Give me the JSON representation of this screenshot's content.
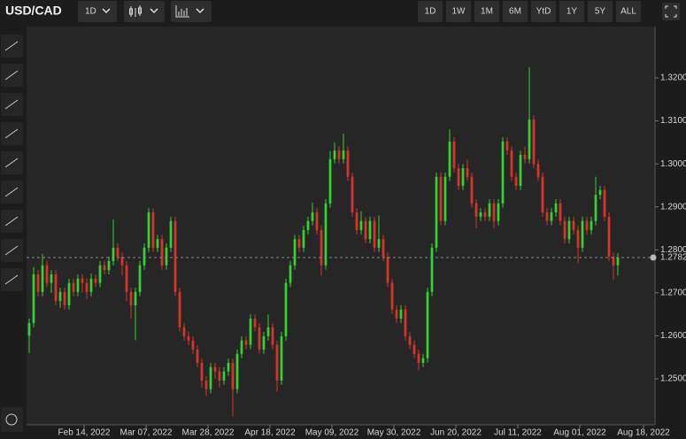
{
  "toolbar": {
    "symbol": "USD/CAD",
    "interval": "1D",
    "ranges": [
      "1D",
      "1W",
      "1M",
      "6M",
      "YtD",
      "1Y",
      "5Y",
      "ALL"
    ]
  },
  "chart_data": {
    "type": "candlestick",
    "up_color": "#33d133",
    "down_color": "#d9342b",
    "last_price": 1.2782,
    "xlim": [
      -0.6,
      141.4
    ],
    "xticks": [
      {
        "value": 12.4,
        "label": "Feb 14, 2022"
      },
      {
        "value": 26.4,
        "label": "Mar 07, 2022"
      },
      {
        "value": 40.4,
        "label": "Mar 28, 2022"
      },
      {
        "value": 54.4,
        "label": "Apr 18, 2022"
      },
      {
        "value": 68.4,
        "label": "May 09, 2022"
      },
      {
        "value": 82.4,
        "label": "May 30, 2022"
      },
      {
        "value": 96.4,
        "label": "Jun 20, 2022"
      },
      {
        "value": 110.4,
        "label": "Jul 11, 2022"
      },
      {
        "value": 124.4,
        "label": "Aug 01, 2022"
      },
      {
        "value": 138.8,
        "label": "Aug 18, 2022"
      }
    ],
    "ylim": [
      1.2397,
      1.3303
    ],
    "yticks": [
      {
        "value": 1.25,
        "label": "1.2500"
      },
      {
        "value": 1.26,
        "label": "1.2600"
      },
      {
        "value": 1.27,
        "label": "1.2700"
      },
      {
        "value": 1.28,
        "label": "1.2800"
      },
      {
        "value": 1.29,
        "label": "1.2900"
      },
      {
        "value": 1.3,
        "label": "1.3000"
      },
      {
        "value": 1.31,
        "label": "1.3100"
      },
      {
        "value": 1.32,
        "label": "1.3200"
      }
    ],
    "candles": [
      [
        1.26,
        1.264,
        1.256,
        1.263
      ],
      [
        1.263,
        1.276,
        1.262,
        1.2743
      ],
      [
        1.2743,
        1.2753,
        1.2692,
        1.2702
      ],
      [
        1.2702,
        1.279,
        1.2692,
        1.2764
      ],
      [
        1.2764,
        1.2774,
        1.2713,
        1.2723
      ],
      [
        1.2723,
        1.2753,
        1.27,
        1.2743
      ],
      [
        1.2743,
        1.2753,
        1.2671,
        1.2681
      ],
      [
        1.2681,
        1.2712,
        1.2665,
        1.2702
      ],
      [
        1.2702,
        1.2712,
        1.2661,
        1.2671
      ],
      [
        1.2671,
        1.2733,
        1.2661,
        1.2723
      ],
      [
        1.2723,
        1.2733,
        1.2692,
        1.2702
      ],
      [
        1.2702,
        1.2743,
        1.2692,
        1.2733
      ],
      [
        1.2733,
        1.2743,
        1.27,
        1.2723
      ],
      [
        1.2723,
        1.2733,
        1.2685,
        1.2702
      ],
      [
        1.2702,
        1.2745,
        1.2692,
        1.2733
      ],
      [
        1.2733,
        1.2743,
        1.2713,
        1.2723
      ],
      [
        1.2723,
        1.2774,
        1.2713,
        1.2764
      ],
      [
        1.2764,
        1.2774,
        1.2743,
        1.2753
      ],
      [
        1.2753,
        1.2784,
        1.2743,
        1.2774
      ],
      [
        1.2774,
        1.287,
        1.2764,
        1.2805
      ],
      [
        1.2805,
        1.2815,
        1.2774,
        1.2784
      ],
      [
        1.2784,
        1.2794,
        1.274,
        1.2764
      ],
      [
        1.2764,
        1.2774,
        1.268,
        1.2702
      ],
      [
        1.2702,
        1.2712,
        1.264,
        1.2671
      ],
      [
        1.2671,
        1.2712,
        1.259,
        1.2702
      ],
      [
        1.2702,
        1.2774,
        1.2692,
        1.2764
      ],
      [
        1.2764,
        1.2815,
        1.2754,
        1.2805
      ],
      [
        1.2805,
        1.2897,
        1.2795,
        1.2887
      ],
      [
        1.2887,
        1.2897,
        1.2795,
        1.2805
      ],
      [
        1.2805,
        1.2835,
        1.2795,
        1.2825
      ],
      [
        1.2825,
        1.2835,
        1.2754,
        1.2764
      ],
      [
        1.2764,
        1.2815,
        1.2754,
        1.2805
      ],
      [
        1.2805,
        1.2877,
        1.2795,
        1.2867
      ],
      [
        1.2867,
        1.2877,
        1.2692,
        1.2702
      ],
      [
        1.2702,
        1.2712,
        1.261,
        1.262
      ],
      [
        1.262,
        1.263,
        1.2589,
        1.2599
      ],
      [
        1.2599,
        1.2609,
        1.2579,
        1.2589
      ],
      [
        1.2589,
        1.2599,
        1.2558,
        1.2568
      ],
      [
        1.2568,
        1.2578,
        1.2527,
        1.2537
      ],
      [
        1.2537,
        1.2547,
        1.248,
        1.2496
      ],
      [
        1.2496,
        1.2506,
        1.246,
        1.2476
      ],
      [
        1.2476,
        1.2537,
        1.2466,
        1.2527
      ],
      [
        1.2527,
        1.2537,
        1.25,
        1.2517
      ],
      [
        1.2517,
        1.2527,
        1.248,
        1.2496
      ],
      [
        1.2496,
        1.2527,
        1.2486,
        1.2517
      ],
      [
        1.2517,
        1.2547,
        1.2507,
        1.2537
      ],
      [
        1.2537,
        1.2547,
        1.2412,
        1.2476
      ],
      [
        1.2476,
        1.2568,
        1.2466,
        1.2558
      ],
      [
        1.2558,
        1.2599,
        1.2548,
        1.2589
      ],
      [
        1.2589,
        1.2599,
        1.2569,
        1.2579
      ],
      [
        1.2579,
        1.265,
        1.2569,
        1.264
      ],
      [
        1.264,
        1.265,
        1.261,
        1.262
      ],
      [
        1.262,
        1.263,
        1.2558,
        1.2568
      ],
      [
        1.2568,
        1.2609,
        1.2558,
        1.2599
      ],
      [
        1.2599,
        1.265,
        1.2589,
        1.262
      ],
      [
        1.262,
        1.263,
        1.2569,
        1.2579
      ],
      [
        1.2579,
        1.2589,
        1.247,
        1.2496
      ],
      [
        1.2496,
        1.2609,
        1.2486,
        1.2599
      ],
      [
        1.2599,
        1.2733,
        1.2589,
        1.2723
      ],
      [
        1.2723,
        1.2774,
        1.2713,
        1.2764
      ],
      [
        1.2764,
        1.2835,
        1.2754,
        1.2825
      ],
      [
        1.2825,
        1.2835,
        1.2795,
        1.2805
      ],
      [
        1.2805,
        1.2856,
        1.2795,
        1.2846
      ],
      [
        1.2846,
        1.2877,
        1.2836,
        1.2867
      ],
      [
        1.2867,
        1.291,
        1.2857,
        1.2887
      ],
      [
        1.2887,
        1.2897,
        1.2836,
        1.2846
      ],
      [
        1.2846,
        1.2856,
        1.274,
        1.2764
      ],
      [
        1.2764,
        1.2918,
        1.2754,
        1.2908
      ],
      [
        1.2908,
        1.303,
        1.2898,
        1.3011
      ],
      [
        1.3011,
        1.305,
        1.3001,
        1.3031
      ],
      [
        1.3031,
        1.3041,
        1.3001,
        1.3011
      ],
      [
        1.3011,
        1.307,
        1.3001,
        1.3031
      ],
      [
        1.3031,
        1.3041,
        1.296,
        1.297
      ],
      [
        1.297,
        1.298,
        1.2877,
        1.2887
      ],
      [
        1.2887,
        1.2897,
        1.2836,
        1.2846
      ],
      [
        1.2846,
        1.289,
        1.2836,
        1.2867
      ],
      [
        1.2867,
        1.2877,
        1.2815,
        1.2825
      ],
      [
        1.2825,
        1.2877,
        1.2815,
        1.2867
      ],
      [
        1.2867,
        1.2877,
        1.2795,
        1.2805
      ],
      [
        1.2805,
        1.288,
        1.2795,
        1.2825
      ],
      [
        1.2825,
        1.2835,
        1.2774,
        1.2784
      ],
      [
        1.2784,
        1.2794,
        1.2713,
        1.2723
      ],
      [
        1.2723,
        1.2733,
        1.2651,
        1.2661
      ],
      [
        1.2661,
        1.2671,
        1.263,
        1.264
      ],
      [
        1.264,
        1.2671,
        1.263,
        1.2661
      ],
      [
        1.2661,
        1.2671,
        1.2589,
        1.2599
      ],
      [
        1.2599,
        1.2609,
        1.2569,
        1.2579
      ],
      [
        1.2579,
        1.2589,
        1.2548,
        1.2558
      ],
      [
        1.2558,
        1.2568,
        1.252,
        1.2537
      ],
      [
        1.2537,
        1.2558,
        1.2527,
        1.2548
      ],
      [
        1.2548,
        1.2712,
        1.2538,
        1.2702
      ],
      [
        1.2702,
        1.2815,
        1.2692,
        1.2805
      ],
      [
        1.2805,
        1.298,
        1.2795,
        1.297
      ],
      [
        1.297,
        1.298,
        1.2857,
        1.2867
      ],
      [
        1.2867,
        1.298,
        1.2857,
        1.297
      ],
      [
        1.297,
        1.308,
        1.296,
        1.3052
      ],
      [
        1.3052,
        1.3062,
        1.298,
        1.299
      ],
      [
        1.299,
        1.3,
        1.2939,
        1.2949
      ],
      [
        1.2949,
        1.3,
        1.2939,
        1.299
      ],
      [
        1.299,
        1.301,
        1.296,
        1.297
      ],
      [
        1.297,
        1.298,
        1.2898,
        1.2908
      ],
      [
        1.2908,
        1.2918,
        1.285,
        1.2877
      ],
      [
        1.2877,
        1.2897,
        1.2867,
        1.2887
      ],
      [
        1.2887,
        1.2897,
        1.2867,
        1.2877
      ],
      [
        1.2877,
        1.2918,
        1.2867,
        1.2908
      ],
      [
        1.2908,
        1.2918,
        1.285,
        1.2867
      ],
      [
        1.2867,
        1.2918,
        1.2857,
        1.2908
      ],
      [
        1.2908,
        1.3062,
        1.2898,
        1.3052
      ],
      [
        1.3052,
        1.3062,
        1.3021,
        1.3031
      ],
      [
        1.3031,
        1.3041,
        1.296,
        1.297
      ],
      [
        1.297,
        1.298,
        1.2939,
        1.2949
      ],
      [
        1.2949,
        1.3031,
        1.2939,
        1.3021
      ],
      [
        1.3021,
        1.304,
        1.3001,
        1.3011
      ],
      [
        1.3011,
        1.3225,
        1.3001,
        1.3103
      ],
      [
        1.3103,
        1.3113,
        1.299,
        1.3
      ],
      [
        1.3,
        1.301,
        1.296,
        1.297
      ],
      [
        1.297,
        1.298,
        1.2877,
        1.2887
      ],
      [
        1.2887,
        1.2897,
        1.2857,
        1.2867
      ],
      [
        1.2867,
        1.2897,
        1.2857,
        1.2887
      ],
      [
        1.2887,
        1.2918,
        1.2877,
        1.2908
      ],
      [
        1.2908,
        1.2918,
        1.2857,
        1.2867
      ],
      [
        1.2867,
        1.2877,
        1.2815,
        1.2825
      ],
      [
        1.2825,
        1.2877,
        1.2815,
        1.2867
      ],
      [
        1.2867,
        1.2877,
        1.2836,
        1.2846
      ],
      [
        1.2846,
        1.2856,
        1.277,
        1.2805
      ],
      [
        1.2805,
        1.2877,
        1.2795,
        1.2867
      ],
      [
        1.2867,
        1.2877,
        1.2836,
        1.2846
      ],
      [
        1.2846,
        1.2877,
        1.2836,
        1.2867
      ],
      [
        1.2867,
        1.297,
        1.2857,
        1.2928
      ],
      [
        1.2928,
        1.2949,
        1.2918,
        1.2939
      ],
      [
        1.2939,
        1.2949,
        1.2867,
        1.2877
      ],
      [
        1.2877,
        1.2887,
        1.2774,
        1.2784
      ],
      [
        1.2784,
        1.2794,
        1.273,
        1.2764
      ],
      [
        1.2764,
        1.2792,
        1.274,
        1.2782
      ]
    ]
  }
}
